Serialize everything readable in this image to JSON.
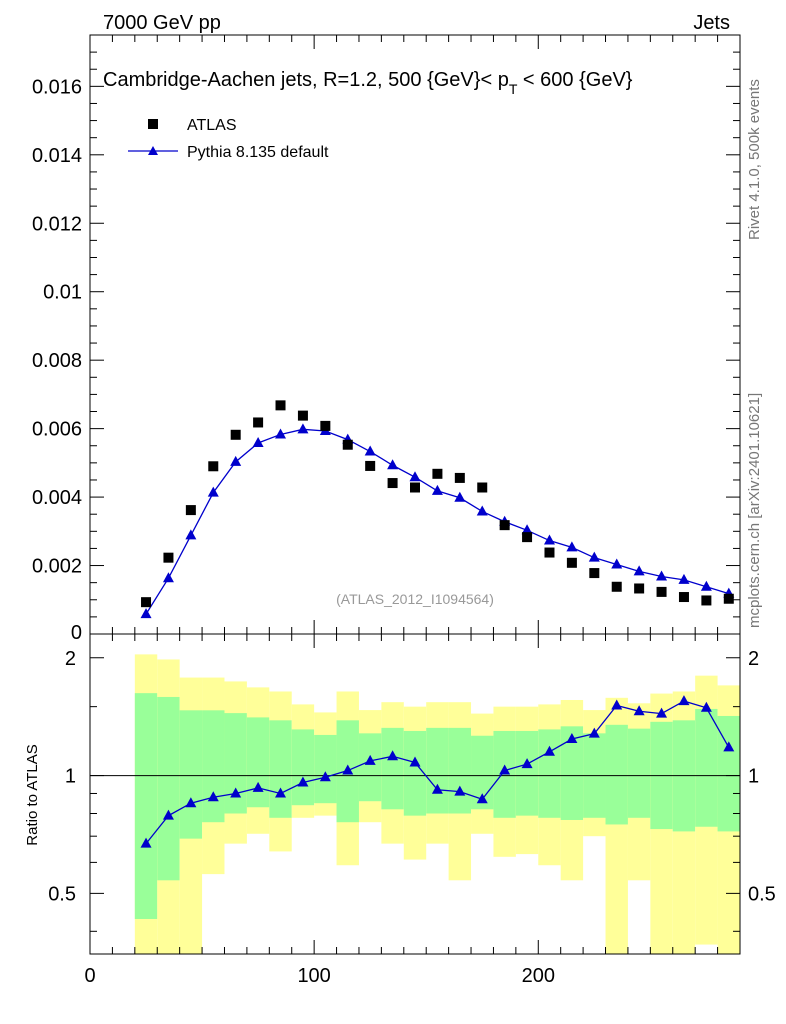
{
  "header": {
    "left": "7000 GeV pp",
    "right": "Jets"
  },
  "side_labels": {
    "rivet": "Rivet 4.1.0,  500k events",
    "mcplots": "mcplots.cern.ch [arXiv:2401.10621]"
  },
  "reference": "(ATLAS_2012_I1094564)",
  "colors": {
    "mc": "#0000cc",
    "data": "#000000",
    "band_outer": "#ffff99",
    "band_inner": "#99ff99"
  },
  "chart_data": [
    {
      "type": "scatter",
      "panel": "main",
      "title": "Cambridge-Aachen jets, R=1.2, 500 {GeV}< p_T < 600 {GeV}",
      "title_text": "Cambridge-Aachen jets, R=1.2, 500 {GeV}< p",
      "title_sub": "T",
      "title_tail": " < 600 {GeV}",
      "xlabel": "",
      "ylabel": "",
      "xlim": [
        0,
        290
      ],
      "ylim": [
        0,
        0.0175
      ],
      "y_ticks": [
        0.002,
        0.004,
        0.006,
        0.008,
        0.01,
        0.012,
        0.014,
        0.016
      ],
      "y_tick_labels": [
        "0.002",
        "0.004",
        "0.006",
        "0.008",
        "0.01",
        "0.012",
        "0.014",
        "0.016"
      ],
      "y_zero_label": "0",
      "legend": [
        "ATLAS",
        "Pythia 8.135 default"
      ],
      "series": [
        {
          "name": "ATLAS",
          "marker": "square",
          "x": [
            25,
            35,
            45,
            55,
            65,
            75,
            85,
            95,
            105,
            115,
            125,
            135,
            145,
            155,
            165,
            175,
            185,
            195,
            205,
            215,
            225,
            235,
            245,
            255,
            265,
            275,
            285
          ],
          "y": [
            0.00093,
            0.00223,
            0.00362,
            0.0049,
            0.00582,
            0.00618,
            0.00668,
            0.00638,
            0.00608,
            0.00553,
            0.00491,
            0.00441,
            0.00428,
            0.00468,
            0.00456,
            0.00428,
            0.00318,
            0.00283,
            0.00238,
            0.00208,
            0.00178,
            0.00138,
            0.00133,
            0.00123,
            0.00108,
            0.00098,
            0.00103
          ]
        },
        {
          "name": "Pythia 8.135 default",
          "marker": "triangle",
          "x": [
            25,
            35,
            45,
            55,
            65,
            75,
            85,
            95,
            105,
            115,
            125,
            135,
            145,
            155,
            165,
            175,
            185,
            195,
            205,
            215,
            225,
            235,
            245,
            255,
            265,
            275,
            285
          ],
          "y": [
            0.00058,
            0.00163,
            0.00288,
            0.00413,
            0.00503,
            0.00558,
            0.00583,
            0.00598,
            0.00593,
            0.00568,
            0.00533,
            0.00493,
            0.00458,
            0.00418,
            0.00398,
            0.00358,
            0.00328,
            0.00303,
            0.00273,
            0.00253,
            0.00223,
            0.00203,
            0.00183,
            0.00168,
            0.00158,
            0.00138,
            0.00118
          ]
        }
      ]
    },
    {
      "type": "line",
      "panel": "ratio",
      "ylabel": "Ratio to ATLAS",
      "xlim": [
        0,
        290
      ],
      "ylim": [
        0.35,
        2.3
      ],
      "y_ticks": [
        0.5,
        1,
        2
      ],
      "y_tick_labels": [
        "0.5",
        "1",
        "2"
      ],
      "x_ticks": [
        0,
        100,
        200
      ],
      "x_tick_labels": [
        "0",
        "100",
        "200"
      ],
      "bin_edges": [
        20,
        30,
        40,
        50,
        60,
        70,
        80,
        90,
        100,
        110,
        120,
        130,
        140,
        150,
        160,
        170,
        180,
        190,
        200,
        210,
        220,
        230,
        240,
        250,
        260,
        270,
        280,
        290
      ],
      "band_outer": {
        "low": [
          0.0,
          0.0,
          0.3,
          0.56,
          0.67,
          0.71,
          0.64,
          0.78,
          0.79,
          0.59,
          0.76,
          0.67,
          0.61,
          0.67,
          0.54,
          0.71,
          0.62,
          0.63,
          0.59,
          0.54,
          0.7,
          0.0,
          0.54,
          0.34,
          0.3,
          0.37,
          0.0
        ],
        "high": [
          2.04,
          1.98,
          1.78,
          1.78,
          1.74,
          1.68,
          1.64,
          1.52,
          1.45,
          1.64,
          1.47,
          1.54,
          1.5,
          1.54,
          1.54,
          1.44,
          1.5,
          1.5,
          1.52,
          1.56,
          1.47,
          1.58,
          1.53,
          1.62,
          1.64,
          1.8,
          1.7
        ]
      },
      "band_inner": {
        "low": [
          0.43,
          0.54,
          0.69,
          0.76,
          0.8,
          0.83,
          0.78,
          0.84,
          0.85,
          0.76,
          0.86,
          0.82,
          0.79,
          0.8,
          0.8,
          0.82,
          0.78,
          0.79,
          0.78,
          0.77,
          0.78,
          0.75,
          0.78,
          0.73,
          0.72,
          0.74,
          0.72
        ]
      },
      "series": [
        {
          "name": "Pythia 8.135 default / ATLAS",
          "x": [
            25,
            35,
            45,
            55,
            65,
            75,
            85,
            95,
            105,
            115,
            125,
            135,
            145,
            155,
            165,
            175,
            185,
            195,
            205,
            215,
            225,
            235,
            245,
            255,
            265,
            275,
            285
          ],
          "y": [
            0.67,
            0.79,
            0.85,
            0.88,
            0.9,
            0.93,
            0.9,
            0.96,
            0.99,
            1.03,
            1.09,
            1.12,
            1.08,
            0.92,
            0.91,
            0.87,
            1.03,
            1.07,
            1.15,
            1.24,
            1.28,
            1.51,
            1.46,
            1.44,
            1.55,
            1.49,
            1.18
          ]
        }
      ]
    }
  ]
}
